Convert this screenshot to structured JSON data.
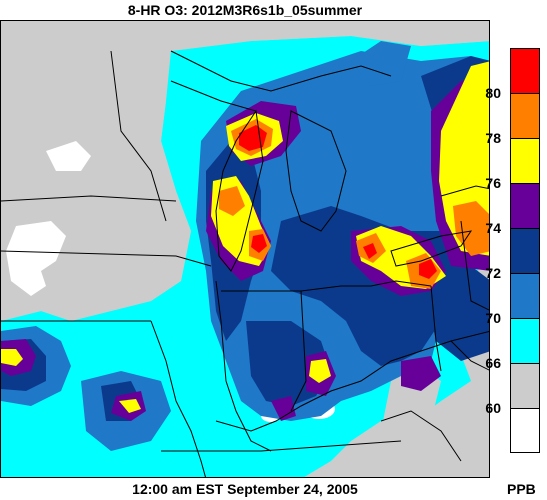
{
  "title": "8-HR O3: 2012M3R6s1b_05summer",
  "footer": "12:00 am EST September 24, 2005",
  "legend": {
    "units": "PPB",
    "bins": [
      {
        "label": "",
        "color": "#ff0000"
      },
      {
        "label": "80",
        "color": "#ff8000"
      },
      {
        "label": "78",
        "color": "#ffff00"
      },
      {
        "label": "76",
        "color": "#660099"
      },
      {
        "label": "74",
        "color": "#0b3a8c"
      },
      {
        "label": "72",
        "color": "#1f78c8"
      },
      {
        "label": "70",
        "color": "#00ffff"
      },
      {
        "label": "66",
        "color": "#cccccc"
      },
      {
        "label": "60",
        "color": "#ffffff"
      }
    ]
  }
}
